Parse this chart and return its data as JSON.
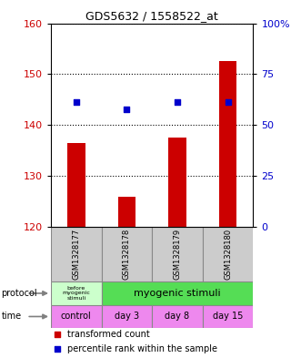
{
  "title": "GDS5632 / 1558522_at",
  "samples": [
    "GSM1328177",
    "GSM1328178",
    "GSM1328179",
    "GSM1328180"
  ],
  "bar_values": [
    136.5,
    126.0,
    137.5,
    152.5
  ],
  "bar_bottom": 120,
  "percentile_values": [
    144.5,
    143.2,
    144.5,
    144.5
  ],
  "ylim": [
    120,
    160
  ],
  "yticks": [
    120,
    130,
    140,
    150,
    160
  ],
  "right_yticks": [
    0,
    25,
    50,
    75,
    100
  ],
  "right_ylim": [
    0,
    100
  ],
  "bar_color": "#cc0000",
  "dot_color": "#0000cc",
  "protocol_row": [
    {
      "label": "before\nmyogenic\nstimuli",
      "color": "#ccffcc"
    },
    {
      "label": "myogenic stimuli",
      "color": "#55dd55"
    }
  ],
  "time_row": [
    {
      "label": "control",
      "color": "#ee88ee"
    },
    {
      "label": "day 3",
      "color": "#ee88ee"
    },
    {
      "label": "day 8",
      "color": "#ee88ee"
    },
    {
      "label": "day 15",
      "color": "#ee88ee"
    }
  ],
  "protocol_label": "protocol",
  "time_label": "time",
  "legend_bar_label": "transformed count",
  "legend_dot_label": "percentile rank within the sample",
  "sample_bg_color": "#cccccc",
  "bar_width": 0.35
}
